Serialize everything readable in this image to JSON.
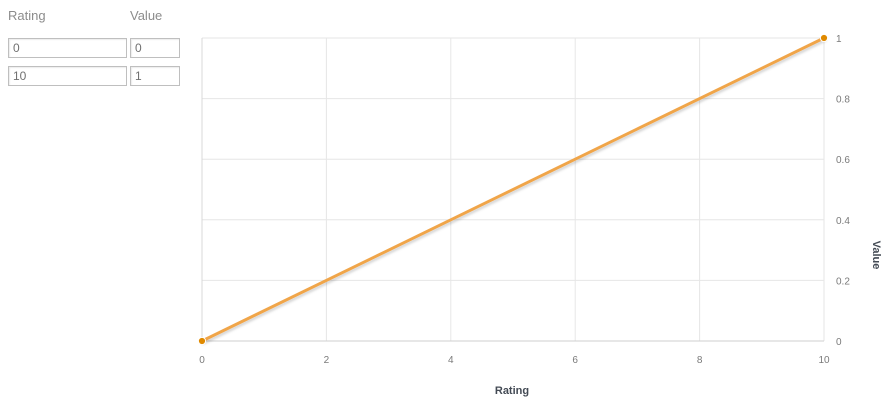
{
  "table": {
    "headers": {
      "rating": "Rating",
      "value": "Value"
    },
    "rows": [
      {
        "rating": "0",
        "value": "0"
      },
      {
        "rating": "10",
        "value": "1"
      }
    ]
  },
  "chart_data": {
    "type": "line",
    "x": [
      0,
      10
    ],
    "series": [
      {
        "values": [
          0,
          1
        ],
        "color": "#f0a54a",
        "marker_color": "#e08a00"
      }
    ],
    "xlabel": "Rating",
    "ylabel": "Value",
    "xlim": [
      0,
      10
    ],
    "ylim": [
      0,
      1
    ],
    "xticks": [
      "0",
      "2",
      "4",
      "6",
      "8",
      "10"
    ],
    "yticks": [
      "0",
      "0.2",
      "0.4",
      "0.6",
      "0.8",
      "1"
    ],
    "y_axis_side": "right",
    "grid": true,
    "grid_color": "#e6e6e6"
  }
}
